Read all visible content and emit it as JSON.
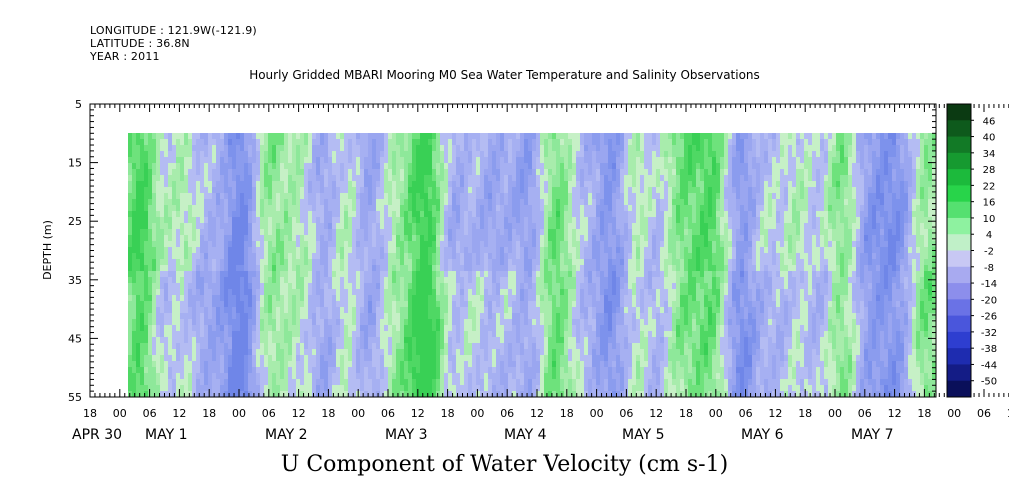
{
  "header": {
    "longitude": "LONGITUDE : 121.9W(-121.9)",
    "latitude": "LATITUDE : 36.8N",
    "year": "YEAR : 2011"
  },
  "chart_data": {
    "type": "heatmap",
    "title": "Hourly Gridded MBARI Mooring M0 Sea Water Temperature and Salinity Observations",
    "xlabel": "U Component of Water Velocity (cm s-1)",
    "ylabel": "DEPTH (m)",
    "y_inverted": true,
    "ylim": [
      5,
      55
    ],
    "yticks": [
      5,
      15,
      25,
      35,
      45,
      55
    ],
    "x_hour_ticks": [
      "18",
      "00",
      "06",
      "12",
      "18",
      "00",
      "06",
      "12",
      "18",
      "00",
      "06",
      "12",
      "18",
      "00",
      "06",
      "12",
      "18",
      "00",
      "06",
      "12",
      "18",
      "00",
      "06",
      "12",
      "18",
      "00",
      "06",
      "12",
      "18",
      "00",
      "06",
      "12",
      "18"
    ],
    "x_day_labels": [
      "APR 30",
      "MAY  1",
      "MAY  2",
      "MAY  3",
      "MAY  4",
      "MAY  5",
      "MAY  6",
      "MAY  7"
    ],
    "data_depth_range": [
      10,
      55
    ],
    "colorbar": {
      "levels": [
        48,
        46,
        40,
        34,
        28,
        22,
        16,
        10,
        4,
        -2,
        -8,
        -14,
        -20,
        -26,
        -32,
        -38,
        -44,
        -50
      ],
      "label_levels": [
        46,
        40,
        34,
        28,
        22,
        16,
        10,
        4,
        -2,
        -8,
        -14,
        -20,
        -26,
        -32,
        -38,
        -44,
        -50
      ],
      "colors": [
        "#0b3a12",
        "#0e5a1c",
        "#127a26",
        "#169a30",
        "#1cba3c",
        "#28d44a",
        "#55e070",
        "#8ef2a0",
        "#c0f0c8",
        "#c8c8f4",
        "#a8aaf0",
        "#8c8eec",
        "#6a72e6",
        "#4a56dc",
        "#2e3ed0",
        "#1e2cb0",
        "#141c86",
        "#0a0f5a"
      ]
    }
  }
}
